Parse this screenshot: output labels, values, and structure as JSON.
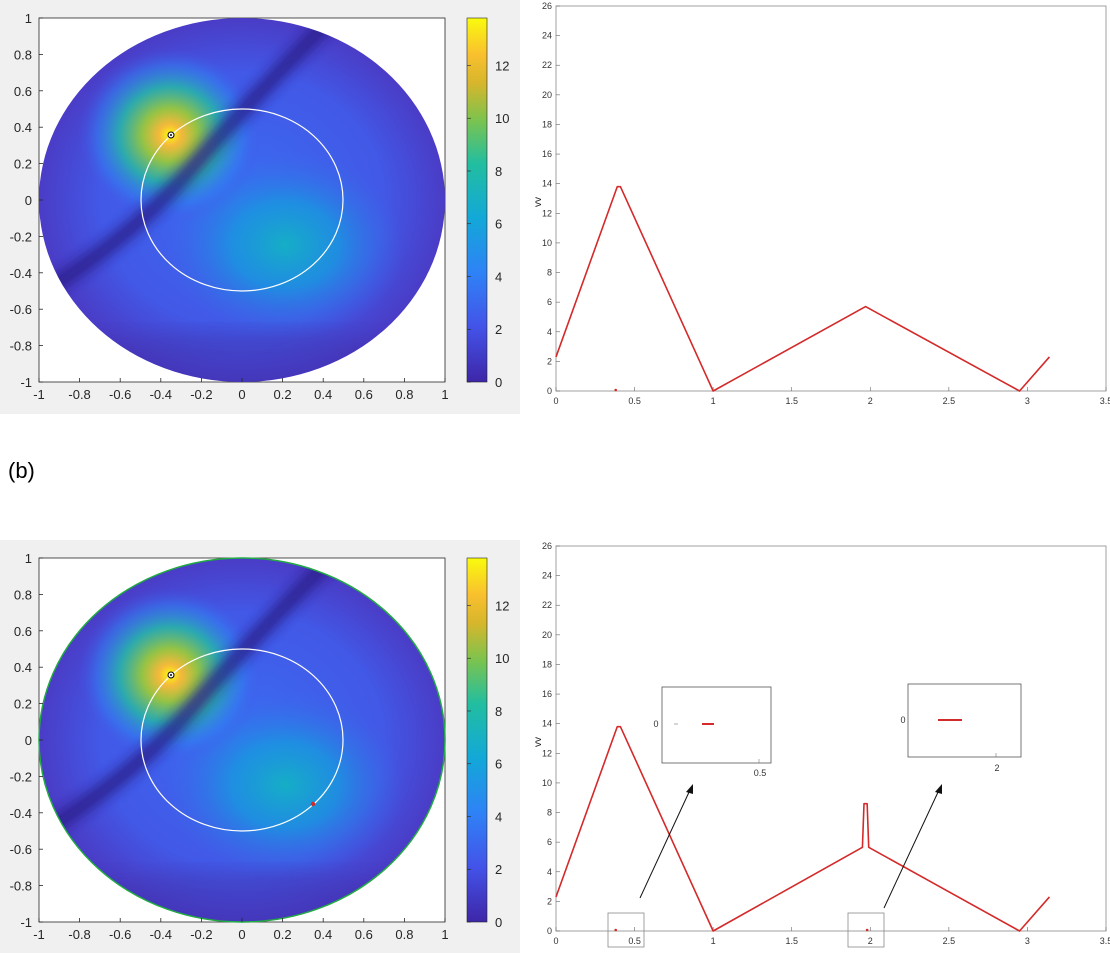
{
  "panels": [
    {
      "label": "",
      "disc_map": {
        "type": "heatmap",
        "x_ticks": [
          "-1",
          "-0.8",
          "-0.6",
          "-0.4",
          "-0.2",
          "0",
          "0.2",
          "0.4",
          "0.6",
          "0.8",
          "1"
        ],
        "y_ticks": [
          "1",
          "0.8",
          "0.6",
          "0.4",
          "0.2",
          "0",
          "-0.2",
          "-0.4",
          "-0.6",
          "-0.8",
          "-1"
        ],
        "xlim": [
          -1,
          1
        ],
        "ylim": [
          -1,
          1
        ],
        "colorbar_ticks": [
          "12",
          "10",
          "8",
          "6",
          "4",
          "2",
          "0"
        ],
        "colorbar_range": [
          0,
          13.8
        ],
        "source_point": [
          -0.35,
          0.36
        ],
        "inner_circle_radius": 0.5,
        "extra_marker": null,
        "boundary_color": null
      },
      "profile": {
        "type": "line",
        "ylabel": "vv",
        "xlim": [
          0,
          3.5
        ],
        "ylim": [
          0,
          26
        ],
        "x_ticks": [
          "0",
          "0.5",
          "1",
          "1.5",
          "2",
          "2.5",
          "3",
          "3.5"
        ],
        "y_ticks": [
          "26",
          "24",
          "22",
          "20",
          "18",
          "16",
          "14",
          "12",
          "10",
          "8",
          "6",
          "4",
          "2",
          "0"
        ],
        "series": [
          {
            "color": "#d42a2a",
            "x": [
              0,
              0.39,
              0.41,
              1.0,
              1.97,
              2.95,
              3.14
            ],
            "y": [
              2.3,
              13.8,
              13.8,
              0,
              5.7,
              0,
              2.3
            ]
          }
        ],
        "marker": [
          0.38,
          0
        ],
        "insets": []
      }
    },
    {
      "label": "(b)",
      "disc_map": {
        "type": "heatmap",
        "x_ticks": [
          "-1",
          "-0.8",
          "-0.6",
          "-0.4",
          "-0.2",
          "0",
          "0.2",
          "0.4",
          "0.6",
          "0.8",
          "1"
        ],
        "y_ticks": [
          "1",
          "0.8",
          "0.6",
          "0.4",
          "0.2",
          "0",
          "-0.2",
          "-0.4",
          "-0.6",
          "-0.8",
          "-1"
        ],
        "xlim": [
          -1,
          1
        ],
        "ylim": [
          -1,
          1
        ],
        "colorbar_ticks": [
          "12",
          "10",
          "8",
          "6",
          "4",
          "2",
          "0"
        ],
        "colorbar_range": [
          0,
          13.8
        ],
        "source_point": [
          -0.35,
          0.36
        ],
        "inner_circle_radius": 0.5,
        "extra_marker": [
          0.35,
          -0.35
        ],
        "boundary_color": "#22aa44"
      },
      "profile": {
        "type": "line",
        "ylabel": "vv",
        "xlim": [
          0,
          3.5
        ],
        "ylim": [
          0,
          26
        ],
        "x_ticks": [
          "0",
          "0.5",
          "1",
          "1.5",
          "2",
          "2.5",
          "3",
          "3.5"
        ],
        "y_ticks": [
          "26",
          "24",
          "22",
          "20",
          "18",
          "16",
          "14",
          "12",
          "10",
          "8",
          "6",
          "4",
          "2",
          "0"
        ],
        "series": [
          {
            "color": "#d42a2a",
            "x": [
              0,
              0.39,
              0.41,
              1.0,
              1.95,
              1.96,
              1.98,
              1.99,
              2.95,
              3.14
            ],
            "y": [
              2.3,
              13.8,
              13.8,
              0,
              5.65,
              8.6,
              8.6,
              5.65,
              0,
              2.3
            ]
          }
        ],
        "marker": [
          0.38,
          0
        ],
        "marker2": [
          1.98,
          0
        ],
        "insets": [
          {
            "y_tick": "0",
            "x_tick": "0.5"
          },
          {
            "y_tick": "0",
            "x_tick": "2"
          }
        ]
      }
    }
  ]
}
